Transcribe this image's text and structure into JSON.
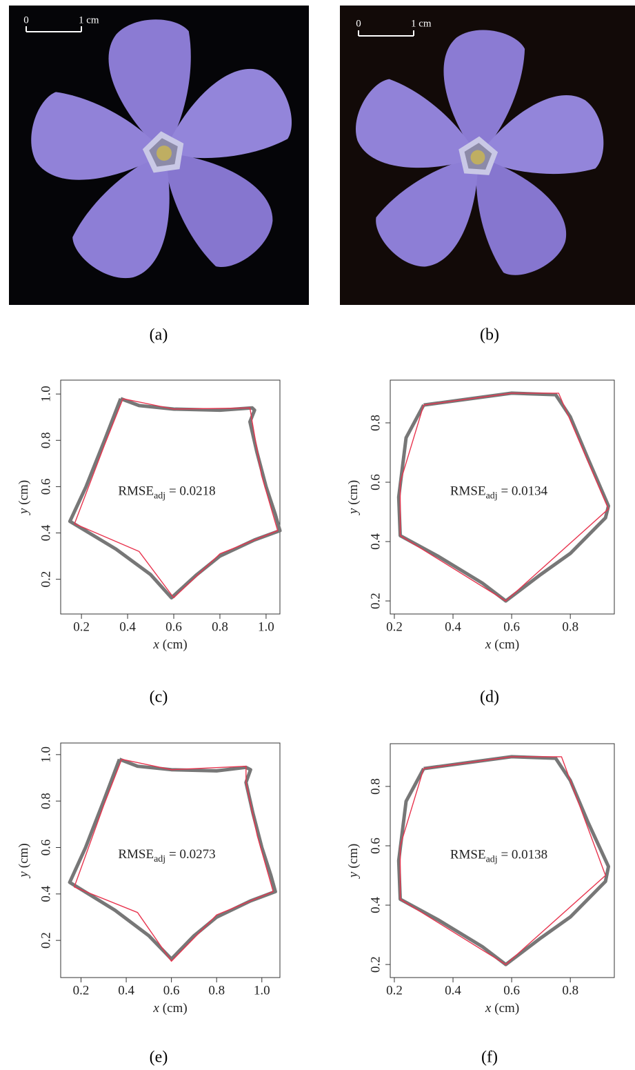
{
  "figure": {
    "photos": [
      {
        "scale_bar": {
          "zero": "0",
          "one": "1 cm"
        }
      },
      {
        "scale_bar": {
          "zero": "0",
          "one": "1 cm"
        }
      }
    ],
    "captions": [
      "(a)",
      "(b)",
      "(c)",
      "(d)",
      "(e)",
      "(f)"
    ]
  },
  "chart_data": [
    {
      "type": "line",
      "xlabel": {
        "var": "x",
        "unit": "(cm)"
      },
      "ylabel": {
        "var": "y",
        "unit": "(cm)"
      },
      "annotation": {
        "base": "RMSE",
        "sub": "adj",
        "rest": " = 0.0218"
      },
      "xlim": [
        0.11,
        1.06
      ],
      "ylim": [
        0.05,
        1.06
      ],
      "xticks": [
        0.2,
        0.4,
        0.6,
        0.8,
        {
          "value": 1,
          "label": "1.0"
        }
      ],
      "yticks": [
        0.2,
        0.4,
        0.6,
        0.8,
        {
          "value": 1,
          "label": "1.0"
        }
      ],
      "series": [
        {
          "color": "#777777",
          "x": [
            0.37,
            0.45,
            0.6,
            0.8,
            0.94,
            0.95,
            0.93,
            0.96,
            1.0,
            1.04,
            1.06,
            0.95,
            0.8,
            0.7,
            0.59,
            0.5,
            0.35,
            0.15,
            0.22,
            0.3,
            0.37
          ],
          "y": [
            0.98,
            0.95,
            0.935,
            0.93,
            0.94,
            0.93,
            0.88,
            0.75,
            0.6,
            0.48,
            0.41,
            0.37,
            0.3,
            0.22,
            0.12,
            0.22,
            0.33,
            0.45,
            0.6,
            0.8,
            0.98
          ]
        },
        {
          "color": "#e8344e",
          "x": [
            0.38,
            0.6,
            0.93,
            0.94,
            0.98,
            1.05,
            0.8,
            0.6,
            0.45,
            0.17,
            0.3,
            0.38
          ],
          "y": [
            0.98,
            0.935,
            0.94,
            0.88,
            0.65,
            0.41,
            0.31,
            0.12,
            0.32,
            0.44,
            0.78,
            0.98
          ]
        }
      ]
    },
    {
      "type": "line",
      "xlabel": {
        "var": "x",
        "unit": "(cm)"
      },
      "ylabel": {
        "var": "y",
        "unit": "(cm)"
      },
      "annotation": {
        "base": "RMSE",
        "sub": "adj",
        "rest": " = 0.0134"
      },
      "xlim": [
        0.186,
        0.95
      ],
      "ylim": [
        0.156,
        0.944
      ],
      "xticks": [
        0.2,
        0.4,
        0.6,
        0.8
      ],
      "yticks": [
        0.2,
        0.4,
        0.6,
        0.8
      ],
      "series": [
        {
          "color": "#777777",
          "x": [
            0.3,
            0.45,
            0.6,
            0.75,
            0.8,
            0.86,
            0.93,
            0.92,
            0.8,
            0.7,
            0.58,
            0.5,
            0.35,
            0.22,
            0.215,
            0.24,
            0.3
          ],
          "y": [
            0.86,
            0.88,
            0.9,
            0.895,
            0.82,
            0.68,
            0.52,
            0.48,
            0.36,
            0.29,
            0.2,
            0.26,
            0.35,
            0.42,
            0.55,
            0.75,
            0.86
          ]
        },
        {
          "color": "#e8344e",
          "x": [
            0.3,
            0.6,
            0.76,
            0.93,
            0.58,
            0.22,
            0.22,
            0.3
          ],
          "y": [
            0.86,
            0.9,
            0.9,
            0.51,
            0.2,
            0.42,
            0.6,
            0.86
          ]
        }
      ]
    },
    {
      "type": "line",
      "xlabel": {
        "var": "x",
        "unit": "(cm)"
      },
      "ylabel": {
        "var": "y",
        "unit": "(cm)"
      },
      "annotation": {
        "base": "RMSE",
        "sub": "adj",
        "rest": " = 0.0273"
      },
      "xlim": [
        0.11,
        1.08
      ],
      "ylim": [
        0.04,
        1.05
      ],
      "xticks": [
        0.2,
        0.4,
        0.6,
        0.8,
        {
          "value": 1,
          "label": "1.0"
        }
      ],
      "yticks": [
        0.2,
        0.4,
        0.6,
        0.8,
        {
          "value": 1,
          "label": "1.0"
        }
      ],
      "series": [
        {
          "color": "#777777",
          "x": [
            0.37,
            0.45,
            0.6,
            0.8,
            0.93,
            0.95,
            0.93,
            0.96,
            1.0,
            1.04,
            1.06,
            0.95,
            0.8,
            0.7,
            0.6,
            0.5,
            0.35,
            0.15,
            0.22,
            0.3,
            0.37
          ],
          "y": [
            0.98,
            0.95,
            0.935,
            0.93,
            0.945,
            0.935,
            0.88,
            0.75,
            0.6,
            0.48,
            0.41,
            0.37,
            0.3,
            0.22,
            0.12,
            0.22,
            0.33,
            0.45,
            0.6,
            0.8,
            0.98
          ]
        },
        {
          "color": "#e8344e",
          "x": [
            0.38,
            0.6,
            0.93,
            0.93,
            0.98,
            1.05,
            0.8,
            0.6,
            0.45,
            0.17,
            0.3,
            0.38
          ],
          "y": [
            0.98,
            0.935,
            0.95,
            0.88,
            0.65,
            0.41,
            0.31,
            0.11,
            0.32,
            0.43,
            0.78,
            0.98
          ]
        }
      ]
    },
    {
      "type": "line",
      "xlabel": {
        "var": "x",
        "unit": "(cm)"
      },
      "ylabel": {
        "var": "y",
        "unit": "(cm)"
      },
      "annotation": {
        "base": "RMSE",
        "sub": "adj",
        "rest": " = 0.0138"
      },
      "xlim": [
        0.186,
        0.95
      ],
      "ylim": [
        0.156,
        0.944
      ],
      "xticks": [
        0.2,
        0.4,
        0.6,
        0.8
      ],
      "yticks": [
        0.2,
        0.4,
        0.6,
        0.8
      ],
      "series": [
        {
          "color": "#777777",
          "x": [
            0.3,
            0.45,
            0.6,
            0.75,
            0.8,
            0.86,
            0.93,
            0.92,
            0.8,
            0.7,
            0.58,
            0.5,
            0.35,
            0.22,
            0.215,
            0.24,
            0.3
          ],
          "y": [
            0.86,
            0.88,
            0.9,
            0.895,
            0.82,
            0.68,
            0.53,
            0.48,
            0.36,
            0.29,
            0.2,
            0.26,
            0.35,
            0.42,
            0.55,
            0.75,
            0.86
          ]
        },
        {
          "color": "#e8344e",
          "x": [
            0.3,
            0.6,
            0.77,
            0.92,
            0.58,
            0.22,
            0.22,
            0.3
          ],
          "y": [
            0.86,
            0.9,
            0.9,
            0.5,
            0.2,
            0.42,
            0.6,
            0.86
          ]
        }
      ]
    }
  ]
}
